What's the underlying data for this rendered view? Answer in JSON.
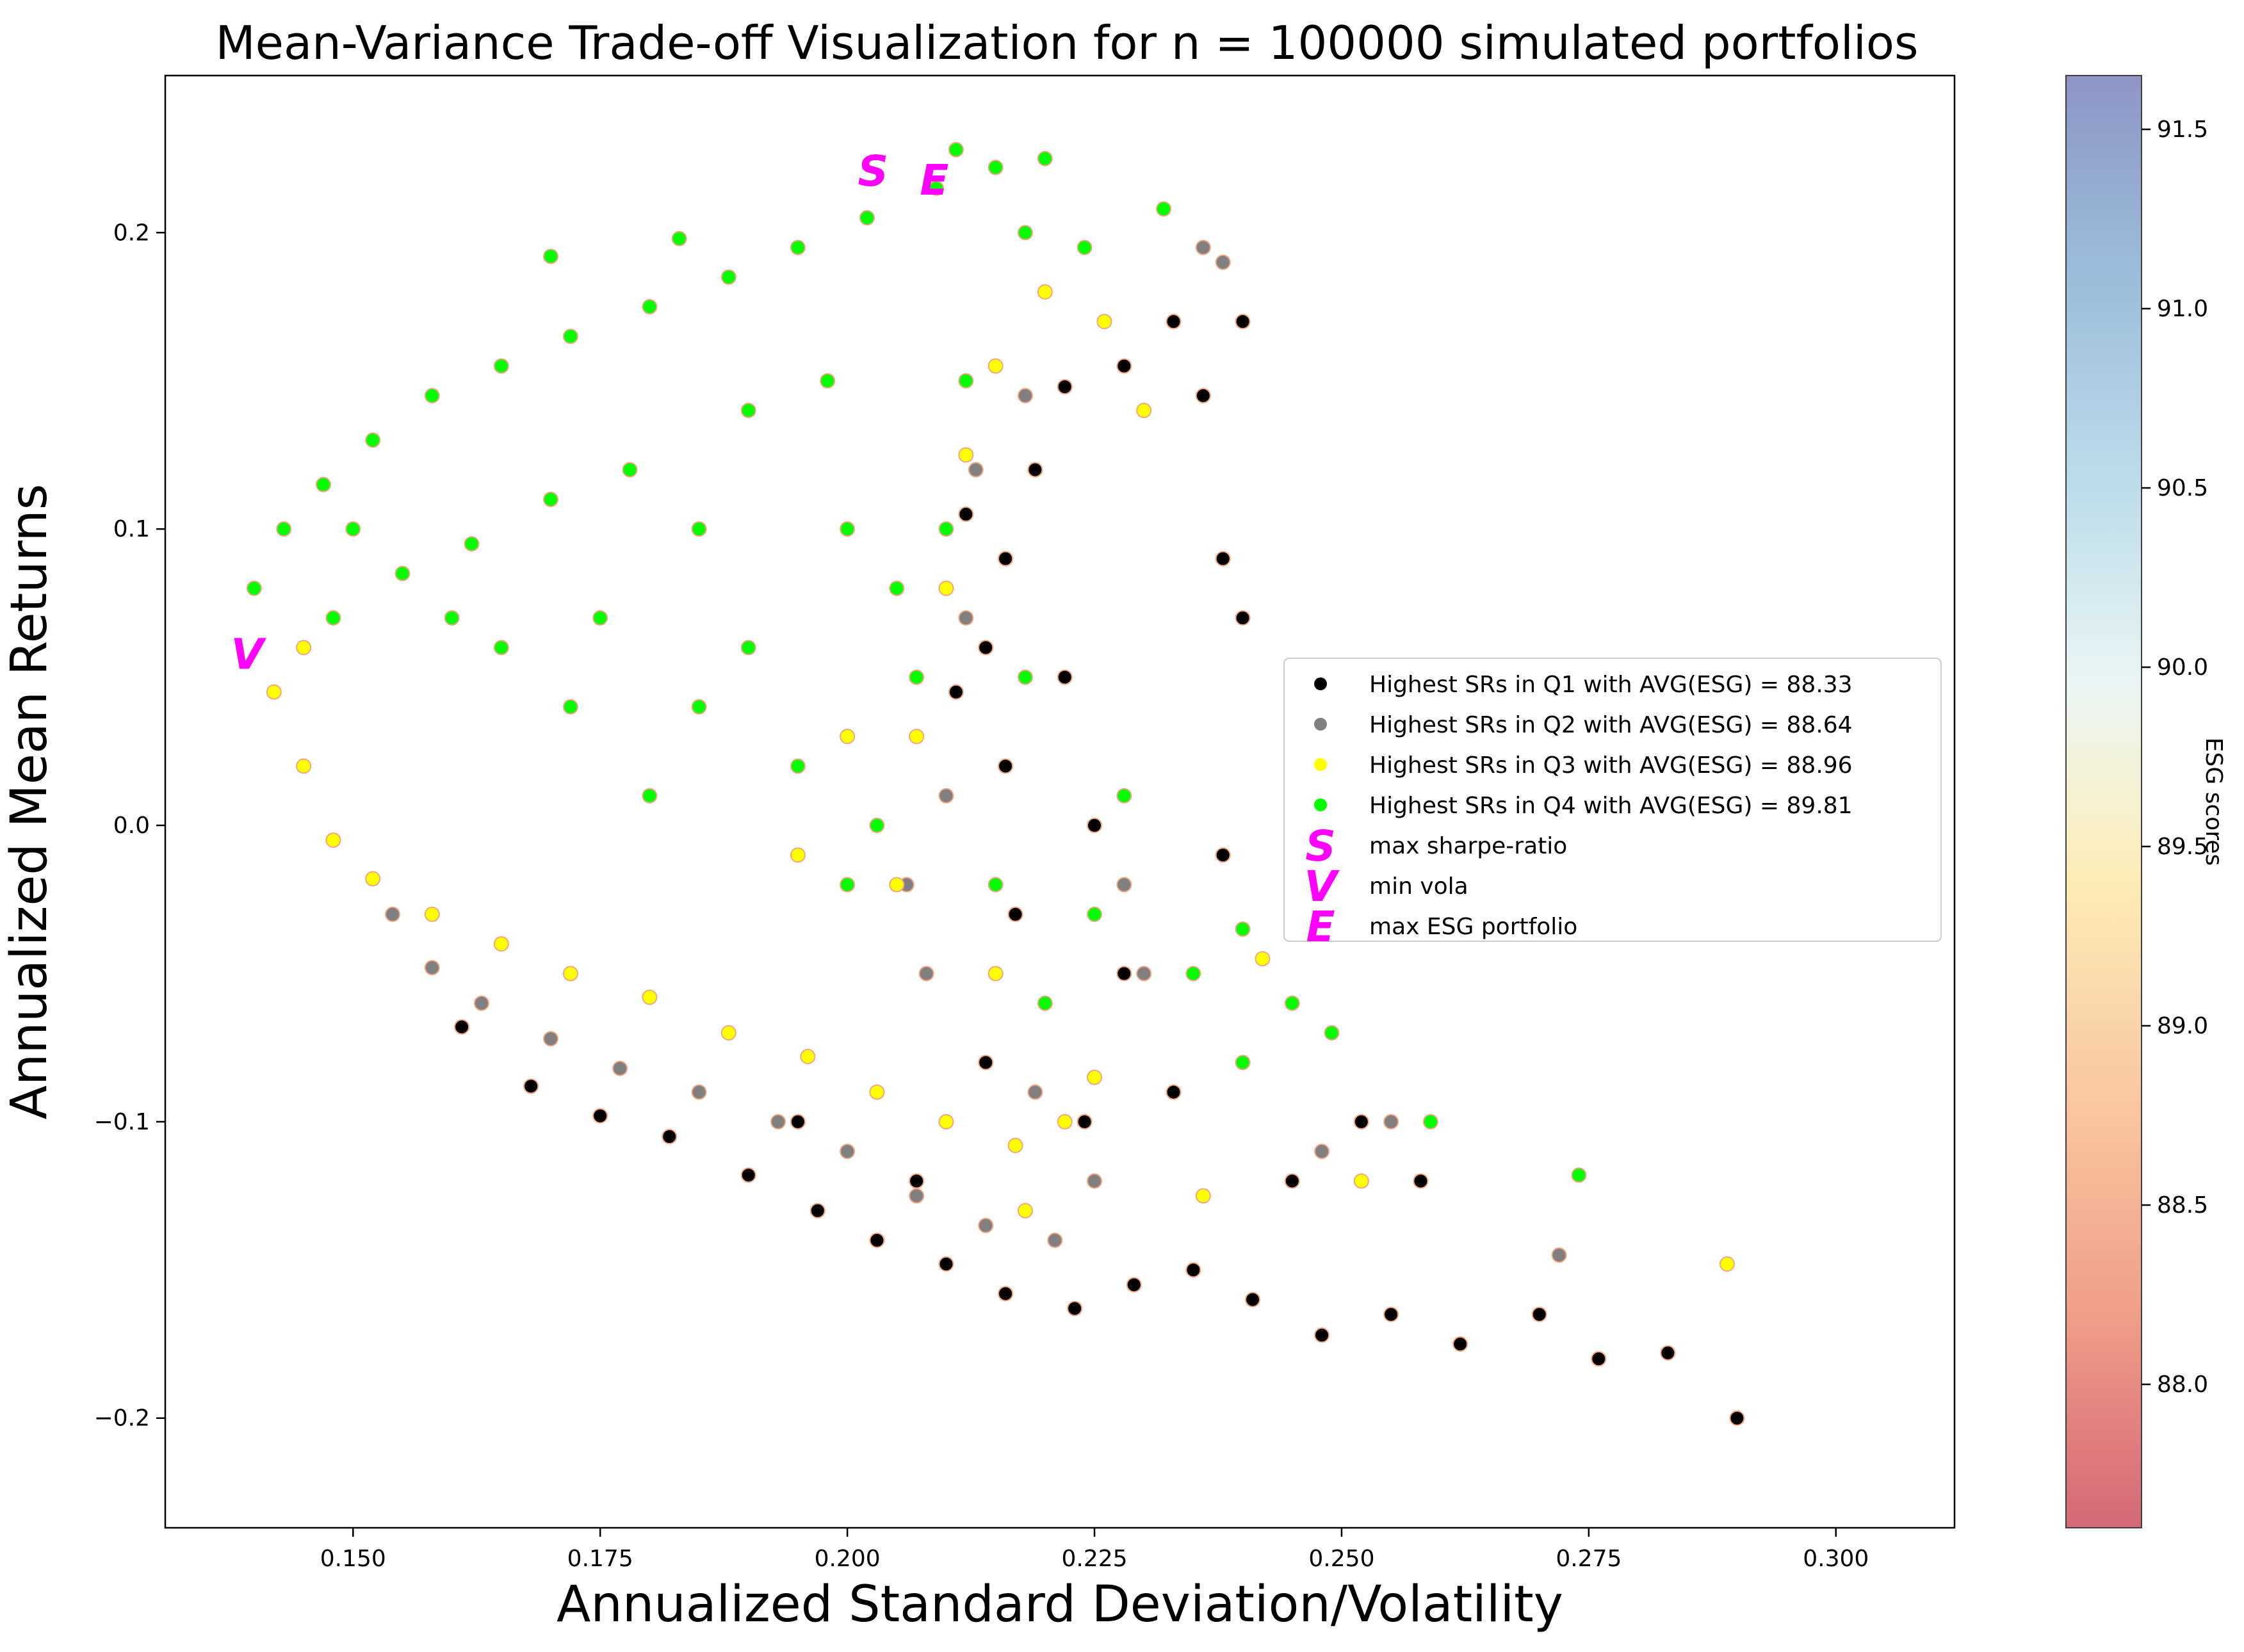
{
  "chart_data": {
    "type": "scatter",
    "title": "Mean-Variance Trade-off Visualization for n = 100000 simulated portfolios",
    "xlabel": "Annualized Standard Deviation/Volatility",
    "ylabel": "Annualized Mean Returns",
    "xlim": [
      0.131,
      0.312
    ],
    "ylim": [
      -0.237,
      0.253
    ],
    "xticks": [
      {
        "v": 0.15,
        "label": "0.150"
      },
      {
        "v": 0.175,
        "label": "0.175"
      },
      {
        "v": 0.2,
        "label": "0.200"
      },
      {
        "v": 0.225,
        "label": "0.225"
      },
      {
        "v": 0.25,
        "label": "0.250"
      },
      {
        "v": 0.275,
        "label": "0.275"
      },
      {
        "v": 0.3,
        "label": "0.300"
      }
    ],
    "yticks": [
      {
        "v": -0.2,
        "label": "−0.2"
      },
      {
        "v": -0.1,
        "label": "−0.1"
      },
      {
        "v": 0.0,
        "label": "0.0"
      },
      {
        "v": 0.1,
        "label": "0.1"
      },
      {
        "v": 0.2,
        "label": "0.2"
      }
    ],
    "grid": false,
    "legend_position": "center-right",
    "colorbar": {
      "label": "ESG scores",
      "range": [
        87.6,
        91.65
      ],
      "colormap": "RdYlBu",
      "ticks": [
        {
          "v": 88.0,
          "label": "88.0"
        },
        {
          "v": 88.5,
          "label": "88.5"
        },
        {
          "v": 89.0,
          "label": "89.0"
        },
        {
          "v": 89.5,
          "label": "89.5"
        },
        {
          "v": 90.0,
          "label": "90.0"
        },
        {
          "v": 90.5,
          "label": "90.5"
        },
        {
          "v": 91.0,
          "label": "91.0"
        },
        {
          "v": 91.5,
          "label": "91.5"
        }
      ]
    },
    "series": [
      {
        "name": "Highest SRs in Q1 with AVG(ESG) = 88.33",
        "color": "#000000",
        "points": [
          [
            0.161,
            -0.068
          ],
          [
            0.168,
            -0.088
          ],
          [
            0.175,
            -0.098
          ],
          [
            0.182,
            -0.105
          ],
          [
            0.19,
            -0.118
          ],
          [
            0.197,
            -0.13
          ],
          [
            0.203,
            -0.14
          ],
          [
            0.21,
            -0.148
          ],
          [
            0.216,
            -0.158
          ],
          [
            0.223,
            -0.163
          ],
          [
            0.229,
            -0.155
          ],
          [
            0.235,
            -0.15
          ],
          [
            0.241,
            -0.16
          ],
          [
            0.248,
            -0.172
          ],
          [
            0.255,
            -0.165
          ],
          [
            0.262,
            -0.175
          ],
          [
            0.27,
            -0.165
          ],
          [
            0.276,
            -0.18
          ],
          [
            0.283,
            -0.178
          ],
          [
            0.29,
            -0.2
          ],
          [
            0.214,
            -0.08
          ],
          [
            0.217,
            -0.03
          ],
          [
            0.216,
            0.02
          ],
          [
            0.214,
            0.06
          ],
          [
            0.216,
            0.09
          ],
          [
            0.219,
            0.12
          ],
          [
            0.222,
            0.148
          ],
          [
            0.212,
            0.105
          ],
          [
            0.211,
            0.045
          ],
          [
            0.222,
            0.05
          ],
          [
            0.225,
            0.0
          ],
          [
            0.228,
            -0.05
          ],
          [
            0.233,
            -0.09
          ],
          [
            0.224,
            -0.1
          ],
          [
            0.207,
            -0.12
          ],
          [
            0.195,
            -0.1
          ],
          [
            0.245,
            -0.12
          ],
          [
            0.252,
            -0.1
          ],
          [
            0.258,
            -0.12
          ],
          [
            0.24,
            0.17
          ],
          [
            0.236,
            0.145
          ],
          [
            0.238,
            0.09
          ],
          [
            0.24,
            0.07
          ],
          [
            0.238,
            -0.01
          ],
          [
            0.233,
            0.17
          ],
          [
            0.228,
            0.155
          ]
        ]
      },
      {
        "name": "Highest SRs in Q2 with AVG(ESG) = 88.64",
        "color": "#808080",
        "points": [
          [
            0.154,
            -0.03
          ],
          [
            0.158,
            -0.048
          ],
          [
            0.163,
            -0.06
          ],
          [
            0.17,
            -0.072
          ],
          [
            0.177,
            -0.082
          ],
          [
            0.185,
            -0.09
          ],
          [
            0.193,
            -0.1
          ],
          [
            0.2,
            -0.11
          ],
          [
            0.207,
            -0.125
          ],
          [
            0.214,
            -0.135
          ],
          [
            0.221,
            -0.14
          ],
          [
            0.208,
            -0.05
          ],
          [
            0.21,
            0.01
          ],
          [
            0.212,
            0.07
          ],
          [
            0.213,
            0.12
          ],
          [
            0.218,
            0.145
          ],
          [
            0.206,
            -0.02
          ],
          [
            0.219,
            -0.09
          ],
          [
            0.225,
            -0.12
          ],
          [
            0.23,
            -0.05
          ],
          [
            0.236,
            0.195
          ],
          [
            0.238,
            0.19
          ],
          [
            0.248,
            -0.11
          ],
          [
            0.255,
            -0.1
          ],
          [
            0.272,
            -0.145
          ],
          [
            0.228,
            -0.02
          ]
        ]
      },
      {
        "name": "Highest SRs in Q3 with AVG(ESG) = 88.96",
        "color": "#ffff00",
        "points": [
          [
            0.142,
            0.045
          ],
          [
            0.145,
            0.02
          ],
          [
            0.148,
            -0.005
          ],
          [
            0.152,
            -0.018
          ],
          [
            0.158,
            -0.03
          ],
          [
            0.165,
            -0.04
          ],
          [
            0.172,
            -0.05
          ],
          [
            0.18,
            -0.058
          ],
          [
            0.188,
            -0.07
          ],
          [
            0.196,
            -0.078
          ],
          [
            0.203,
            -0.09
          ],
          [
            0.21,
            -0.1
          ],
          [
            0.217,
            -0.108
          ],
          [
            0.222,
            -0.1
          ],
          [
            0.225,
            -0.085
          ],
          [
            0.205,
            -0.02
          ],
          [
            0.207,
            0.03
          ],
          [
            0.21,
            0.08
          ],
          [
            0.212,
            0.125
          ],
          [
            0.215,
            0.155
          ],
          [
            0.22,
            0.18
          ],
          [
            0.226,
            0.17
          ],
          [
            0.2,
            0.03
          ],
          [
            0.195,
            -0.01
          ],
          [
            0.218,
            -0.13
          ],
          [
            0.236,
            -0.125
          ],
          [
            0.242,
            -0.045
          ],
          [
            0.252,
            -0.12
          ],
          [
            0.289,
            -0.148
          ],
          [
            0.23,
            0.14
          ],
          [
            0.215,
            -0.05
          ],
          [
            0.145,
            0.06
          ]
        ]
      },
      {
        "name": "Highest SRs in Q4 with AVG(ESG) = 89.81",
        "color": "#00ff00",
        "points": [
          [
            0.14,
            0.08
          ],
          [
            0.143,
            0.1
          ],
          [
            0.147,
            0.115
          ],
          [
            0.152,
            0.13
          ],
          [
            0.158,
            0.145
          ],
          [
            0.165,
            0.155
          ],
          [
            0.172,
            0.165
          ],
          [
            0.18,
            0.175
          ],
          [
            0.188,
            0.185
          ],
          [
            0.195,
            0.195
          ],
          [
            0.202,
            0.205
          ],
          [
            0.209,
            0.215
          ],
          [
            0.215,
            0.222
          ],
          [
            0.22,
            0.225
          ],
          [
            0.211,
            0.228
          ],
          [
            0.218,
            0.2
          ],
          [
            0.212,
            0.15
          ],
          [
            0.21,
            0.1
          ],
          [
            0.207,
            0.05
          ],
          [
            0.203,
            0.0
          ],
          [
            0.2,
            -0.02
          ],
          [
            0.195,
            0.02
          ],
          [
            0.19,
            0.06
          ],
          [
            0.185,
            0.1
          ],
          [
            0.178,
            0.12
          ],
          [
            0.17,
            0.11
          ],
          [
            0.162,
            0.095
          ],
          [
            0.155,
            0.085
          ],
          [
            0.148,
            0.07
          ],
          [
            0.165,
            0.06
          ],
          [
            0.175,
            0.07
          ],
          [
            0.185,
            0.04
          ],
          [
            0.18,
            0.01
          ],
          [
            0.172,
            0.04
          ],
          [
            0.16,
            0.07
          ],
          [
            0.15,
            0.1
          ],
          [
            0.19,
            0.14
          ],
          [
            0.2,
            0.1
          ],
          [
            0.198,
            0.15
          ],
          [
            0.205,
            0.08
          ],
          [
            0.215,
            -0.02
          ],
          [
            0.22,
            -0.06
          ],
          [
            0.225,
            -0.03
          ],
          [
            0.232,
            0.208
          ],
          [
            0.235,
            -0.05
          ],
          [
            0.24,
            -0.08
          ],
          [
            0.245,
            -0.06
          ],
          [
            0.249,
            -0.07
          ],
          [
            0.259,
            -0.1
          ],
          [
            0.274,
            -0.118
          ],
          [
            0.24,
            -0.035
          ],
          [
            0.228,
            0.01
          ],
          [
            0.218,
            0.05
          ],
          [
            0.17,
            0.192
          ],
          [
            0.183,
            0.198
          ],
          [
            0.224,
            0.195
          ]
        ]
      }
    ],
    "markers": [
      {
        "label": "max sharpe-ratio",
        "symbol": "S",
        "x": 0.2026,
        "y": 0.221
      },
      {
        "label": "min vola",
        "symbol": "V",
        "x": 0.1393,
        "y": 0.058
      },
      {
        "label": "max ESG portfolio",
        "symbol": "E",
        "x": 0.2088,
        "y": 0.218
      }
    ]
  }
}
